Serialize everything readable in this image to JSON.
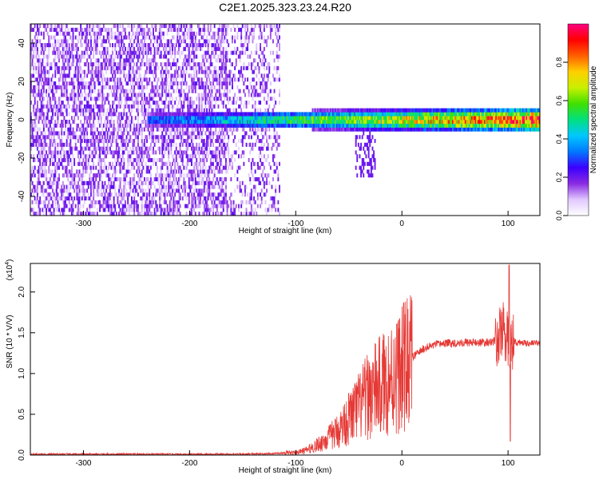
{
  "title": "C2E1.2025.323.23.24.R20",
  "chart_data": [
    {
      "type": "heatmap",
      "xlabel": "Height of straight line (km)",
      "ylabel": "Frequency (Hz)",
      "xlim": [
        -350,
        130
      ],
      "ylim": [
        -50,
        50
      ],
      "xticks": [
        -300,
        -200,
        -100,
        0,
        100
      ],
      "yticks": [
        -40,
        -20,
        0,
        20,
        40
      ],
      "colorbar": {
        "label": "Normalized spectral amplitude",
        "range": [
          0,
          1
        ],
        "ticks": [
          "0.0",
          "0.2",
          "0.4",
          "0.6",
          "0.8"
        ],
        "colors": [
          "#ffffff",
          "#e0c8ff",
          "#8a2be2",
          "#3c00ff",
          "#0078ff",
          "#00c8ff",
          "#00e080",
          "#40e000",
          "#c8f000",
          "#ffd000",
          "#ff6000",
          "#ff0000",
          "#ff0080"
        ]
      },
      "features": [
        {
          "name": "broadband noise",
          "x_range": [
            -350,
            -115
          ],
          "freq_range": [
            -50,
            50
          ],
          "amplitude": 0.15
        },
        {
          "name": "carrier band",
          "x_range": [
            -240,
            130
          ],
          "freq_center": 0,
          "amplitude_start": 0.3,
          "amplitude_end": 0.9
        },
        {
          "name": "frequency dip",
          "x_range": [
            -45,
            -25
          ],
          "freq_range": [
            -30,
            -5
          ],
          "amplitude": 0.2
        }
      ]
    },
    {
      "type": "line",
      "xlabel": "Height of straight line (km)",
      "ylabel": "SNR (10 * V/V)",
      "scale_label": "(x10",
      "scale_exponent": "4",
      "xlim": [
        -350,
        130
      ],
      "ylim": [
        0,
        2.35
      ],
      "xticks": [
        -300,
        -200,
        -100,
        0,
        100
      ],
      "yticks": [
        "0.0",
        "0.5",
        "1.0",
        "1.5",
        "2.0"
      ],
      "line_color": "#e53935",
      "series": [
        {
          "name": "SNR",
          "x": [
            -350,
            -300,
            -250,
            -200,
            -150,
            -120,
            -100,
            -90,
            -80,
            -70,
            -60,
            -50,
            -40,
            -30,
            -20,
            -10,
            0,
            10,
            20,
            30,
            40,
            60,
            80,
            90,
            95,
            100,
            102,
            105,
            110,
            120,
            130
          ],
          "y": [
            0.01,
            0.01,
            0.01,
            0.01,
            0.01,
            0.02,
            0.03,
            0.06,
            0.12,
            0.2,
            0.3,
            0.45,
            0.6,
            0.75,
            0.85,
            0.95,
            1.05,
            1.2,
            1.3,
            1.35,
            1.37,
            1.38,
            1.38,
            1.4,
            1.55,
            1.4,
            1.4,
            1.38,
            1.38,
            1.37,
            1.37
          ]
        }
      ],
      "annotations": [
        {
          "x": 101,
          "y": 2.33,
          "note": "spike"
        },
        {
          "x": 102,
          "y": 0.17,
          "note": "dropout"
        }
      ]
    }
  ]
}
